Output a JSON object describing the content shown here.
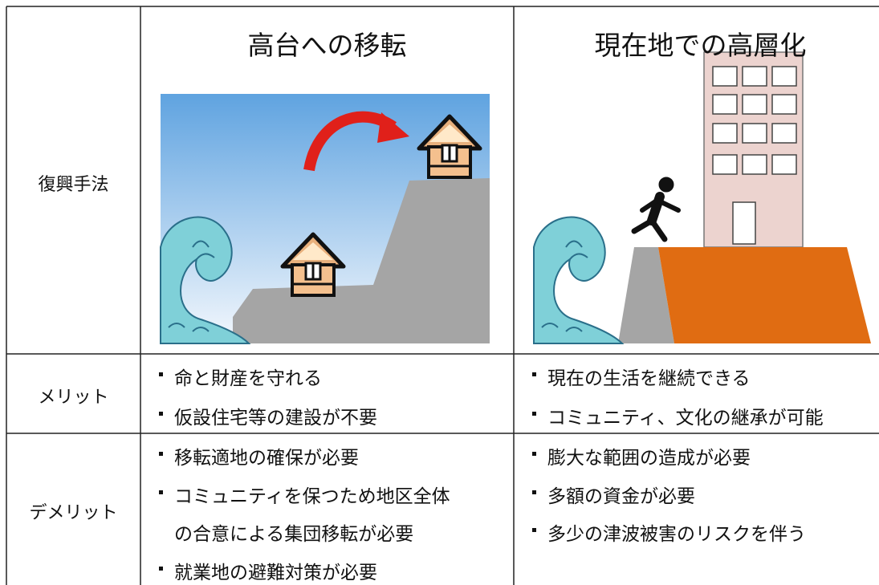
{
  "table": {
    "method": {
      "label": "復興手法",
      "options": [
        "高台への移転",
        "現在地での高層化"
      ]
    },
    "merits": {
      "label": "メリット",
      "options": [
        [
          [
            "命と財産を守れる"
          ],
          [
            "仮設住宅等の建設が不要"
          ]
        ],
        [
          [
            "現在の生活を継続できる"
          ],
          [
            "コミュニティ、文化の継承が可能"
          ]
        ]
      ]
    },
    "demerits": {
      "label": "デメリット",
      "options": [
        [
          [
            "移転適地の確保が必要"
          ],
          [
            "コミュニティを保つため地区全体",
            "の合意による集団移転が必要"
          ],
          [
            "就業地の避難対策が必要"
          ]
        ],
        [
          [
            "膨大な範囲の造成が必要"
          ],
          [
            "多額の資金が必要"
          ],
          [
            "多少の津波被害のリスクを伴う"
          ]
        ]
      ]
    }
  }
}
